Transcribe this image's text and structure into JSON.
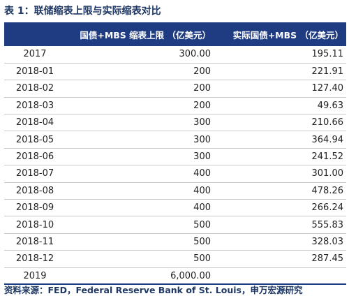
{
  "title": "表 1：联储缩表上限与实际缩表对比",
  "table": {
    "headers": [
      "",
      "国债+MBS 缩表上限 （亿美元）",
      "实际国债+MBS （亿美元）"
    ],
    "rows": [
      [
        "2017",
        "300.00",
        "195.11"
      ],
      [
        "2018-01",
        "200",
        "221.91"
      ],
      [
        "2018-02",
        "200",
        "127.40"
      ],
      [
        "2018-03",
        "200",
        "49.63"
      ],
      [
        "2018-04",
        "300",
        "210.66"
      ],
      [
        "2018-05",
        "300",
        "364.94"
      ],
      [
        "2018-06",
        "300",
        "241.52"
      ],
      [
        "2018-07",
        "400",
        "301.00"
      ],
      [
        "2018-08",
        "400",
        "478.26"
      ],
      [
        "2018-09",
        "400",
        "266.24"
      ],
      [
        "2018-10",
        "500",
        "555.83"
      ],
      [
        "2018-11",
        "500",
        "328.03"
      ],
      [
        "2018-12",
        "500",
        "287.45"
      ],
      [
        "2019",
        "6,000.00",
        ""
      ]
    ]
  },
  "source": "资料来源：FED，Federal Reserve Bank of St. Louis，申万宏源研究"
}
